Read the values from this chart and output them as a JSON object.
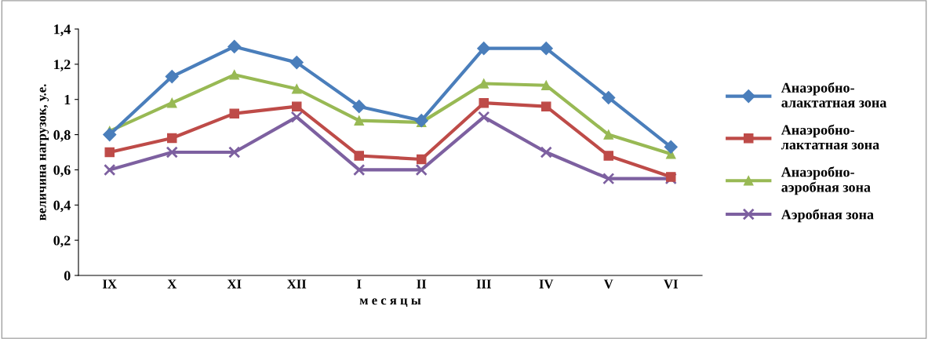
{
  "chart_data": {
    "type": "line",
    "xlabel": "м е с я ц ы",
    "ylabel": "величина нагрузок, у.е.",
    "categories": [
      "IX",
      "X",
      "XI",
      "XII",
      "I",
      "II",
      "III",
      "IV",
      "V",
      "VI"
    ],
    "ylim": [
      0,
      1.4
    ],
    "yticks": [
      0,
      {
        "value": 0.2,
        "label": "0,2"
      },
      {
        "value": 0.4,
        "label": "0,4"
      },
      {
        "value": 0.6,
        "label": "0,6"
      },
      {
        "value": 0.8,
        "label": "0,8"
      },
      1,
      {
        "value": 1.2,
        "label": "1,2"
      },
      {
        "value": 1.4,
        "label": "1,4"
      }
    ],
    "grid": false,
    "legend": "right",
    "series": [
      {
        "name": "Анаэробно-\nалактатная зона",
        "color": "#4a7ebb",
        "marker": "diamond",
        "values": [
          0.8,
          1.13,
          1.3,
          1.21,
          0.96,
          0.88,
          1.29,
          1.29,
          1.01,
          0.73
        ]
      },
      {
        "name": "Анаэробно-\nлактатная зона",
        "color": "#be4b48",
        "marker": "square",
        "values": [
          0.7,
          0.78,
          0.92,
          0.96,
          0.68,
          0.66,
          0.98,
          0.96,
          0.68,
          0.56
        ]
      },
      {
        "name": "Анаэробно-\nаэробная зона",
        "color": "#98b954",
        "marker": "triangle",
        "values": [
          0.82,
          0.98,
          1.14,
          1.06,
          0.88,
          0.87,
          1.09,
          1.08,
          0.8,
          0.69
        ]
      },
      {
        "name": "Аэробная зона",
        "color": "#7d60a0",
        "marker": "cross",
        "values": [
          0.6,
          0.7,
          0.7,
          0.9,
          0.6,
          0.6,
          0.9,
          0.7,
          0.55,
          0.55
        ]
      }
    ]
  }
}
